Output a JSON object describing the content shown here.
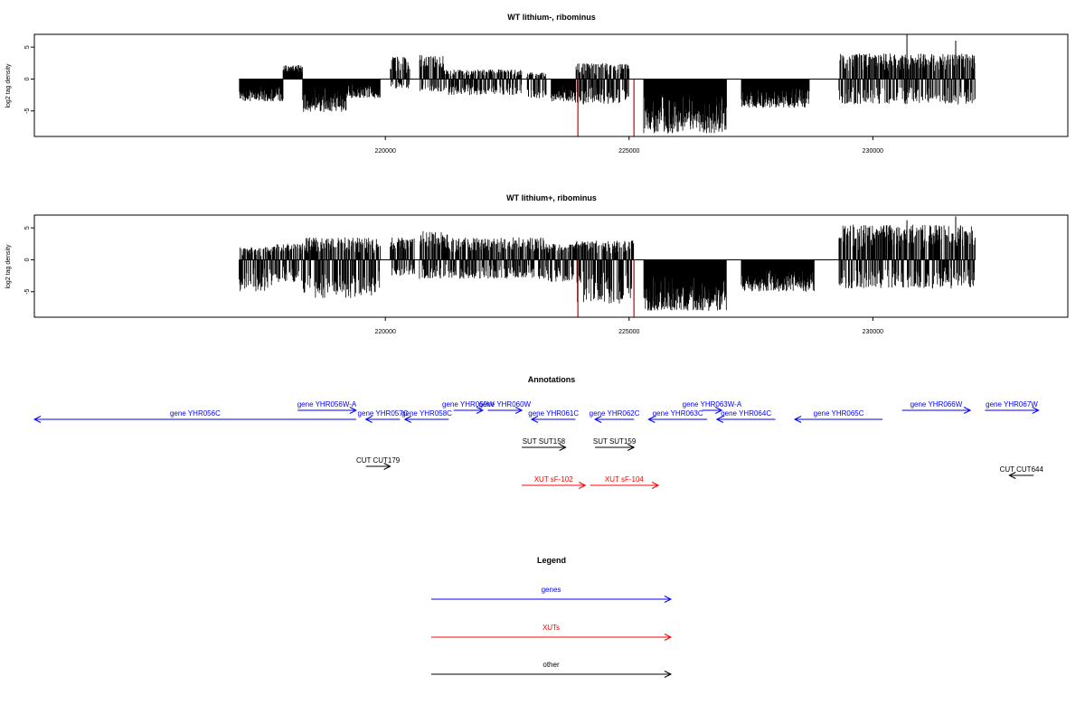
{
  "chart_data": [
    {
      "type": "bar",
      "title": "WT lithium-, ribominus",
      "ylabel": "log2 tag density",
      "xlabel": "",
      "xlim": [
        212800,
        234000
      ],
      "ylim": [
        -9,
        7
      ],
      "x_ticks": [
        220000,
        225000,
        230000
      ],
      "y_ticks": [
        -5,
        0,
        5
      ],
      "density_profile": [
        {
          "start": 217000,
          "end": 217900,
          "min": -3.5,
          "max": 0
        },
        {
          "start": 217900,
          "end": 218300,
          "min": 0,
          "max": 2.2
        },
        {
          "start": 218300,
          "end": 219200,
          "min": -5.2,
          "max": 0
        },
        {
          "start": 219200,
          "end": 219900,
          "min": -3.0,
          "max": 0
        },
        {
          "start": 220100,
          "end": 220500,
          "min": -1.5,
          "max": 3.5
        },
        {
          "start": 220700,
          "end": 221200,
          "min": -2.0,
          "max": 3.8
        },
        {
          "start": 221200,
          "end": 222800,
          "min": -2.5,
          "max": 1.5
        },
        {
          "start": 222900,
          "end": 223300,
          "min": -3.0,
          "max": 1.0
        },
        {
          "start": 223400,
          "end": 223900,
          "min": -3.5,
          "max": 0
        },
        {
          "start": 223900,
          "end": 225000,
          "min": -4.0,
          "max": 2.5
        },
        {
          "start": 225300,
          "end": 227000,
          "min": -8.5,
          "max": 0
        },
        {
          "start": 227300,
          "end": 228700,
          "min": -4.5,
          "max": 0
        },
        {
          "start": 229300,
          "end": 232100,
          "min": -4.0,
          "max": 4.0
        }
      ],
      "highlight_x": [
        223950,
        225100
      ],
      "highlight_min": -9.0,
      "highlight_color": "#cc0000",
      "peak_marks": [
        {
          "x": 230700,
          "y": 7
        },
        {
          "x": 231700,
          "y": 6
        }
      ]
    },
    {
      "type": "bar",
      "title": "WT lithium+, ribominus",
      "ylabel": "log2 tag density",
      "xlabel": "",
      "xlim": [
        212800,
        234000
      ],
      "ylim": [
        -9,
        7
      ],
      "x_ticks": [
        220000,
        225000,
        230000
      ],
      "y_ticks": [
        -5,
        0,
        5
      ],
      "density_profile": [
        {
          "start": 217000,
          "end": 217700,
          "min": -5.0,
          "max": 2.0
        },
        {
          "start": 217700,
          "end": 218300,
          "min": -3.5,
          "max": 2.5
        },
        {
          "start": 218300,
          "end": 219900,
          "min": -6.0,
          "max": 3.5
        },
        {
          "start": 220100,
          "end": 220600,
          "min": -2.5,
          "max": 3.5
        },
        {
          "start": 220700,
          "end": 221300,
          "min": -3.0,
          "max": 4.5
        },
        {
          "start": 221300,
          "end": 223300,
          "min": -3.0,
          "max": 3.5
        },
        {
          "start": 223300,
          "end": 223900,
          "min": -3.5,
          "max": 2.5
        },
        {
          "start": 223900,
          "end": 225100,
          "min": -7.0,
          "max": 3.0
        },
        {
          "start": 225300,
          "end": 227000,
          "min": -8.0,
          "max": 0
        },
        {
          "start": 227300,
          "end": 228800,
          "min": -5.0,
          "max": 0
        },
        {
          "start": 229300,
          "end": 232100,
          "min": -4.5,
          "max": 5.5
        }
      ],
      "highlight_x": [
        223950,
        225100
      ],
      "highlight_min": -9.0,
      "highlight_color": "#cc0000",
      "peak_marks": [
        {
          "x": 230700,
          "y": 6.2
        },
        {
          "x": 231700,
          "y": 6.8
        }
      ]
    }
  ],
  "annotations": {
    "title": "Annotations",
    "xlim": [
      212800,
      234000
    ],
    "colors": {
      "gene": "#0000ff",
      "xut": "#ff0000",
      "other": "#000000"
    },
    "features": [
      {
        "label": "gene YHR056C",
        "kind": "gene",
        "start": 212800,
        "end": 219400,
        "strand": "-",
        "row": 1
      },
      {
        "label": "gene YHR056W-A",
        "kind": "gene",
        "start": 218200,
        "end": 219400,
        "strand": "+",
        "row": 0
      },
      {
        "label": "gene YHR057C",
        "kind": "gene",
        "start": 219600,
        "end": 220300,
        "strand": "-",
        "row": 1
      },
      {
        "label": "gene YHR058C",
        "kind": "gene",
        "start": 220400,
        "end": 221300,
        "strand": "-",
        "row": 1
      },
      {
        "label": "gene YHR059W",
        "kind": "gene",
        "start": 221400,
        "end": 222000,
        "strand": "+",
        "row": 0
      },
      {
        "label": "gene YHR060W",
        "kind": "gene",
        "start": 222100,
        "end": 222800,
        "strand": "+",
        "row": 0
      },
      {
        "label": "gene YHR061C",
        "kind": "gene",
        "start": 223000,
        "end": 223900,
        "strand": "-",
        "row": 1
      },
      {
        "label": "gene YHR062C",
        "kind": "gene",
        "start": 224300,
        "end": 225100,
        "strand": "-",
        "row": 1
      },
      {
        "label": "gene YHR063C",
        "kind": "gene",
        "start": 225400,
        "end": 226600,
        "strand": "-",
        "row": 1
      },
      {
        "label": "gene YHR063W-A",
        "kind": "gene",
        "start": 226500,
        "end": 226900,
        "strand": "+",
        "row": 0
      },
      {
        "label": "gene YHR064C",
        "kind": "gene",
        "start": 226800,
        "end": 228000,
        "strand": "-",
        "row": 1
      },
      {
        "label": "gene YHR065C",
        "kind": "gene",
        "start": 228400,
        "end": 230200,
        "strand": "-",
        "row": 1
      },
      {
        "label": "gene YHR066W",
        "kind": "gene",
        "start": 230600,
        "end": 232000,
        "strand": "+",
        "row": 0
      },
      {
        "label": "gene YHR067W",
        "kind": "gene",
        "start": 232300,
        "end": 233400,
        "strand": "+",
        "row": 0
      },
      {
        "label": "SUT SUT158",
        "kind": "other",
        "start": 222800,
        "end": 223700,
        "strand": "+",
        "row": 2
      },
      {
        "label": "SUT SUT159",
        "kind": "other",
        "start": 224300,
        "end": 225100,
        "strand": "+",
        "row": 2
      },
      {
        "label": "CUT CUT179",
        "kind": "other",
        "start": 219600,
        "end": 220100,
        "strand": "+",
        "row": 3
      },
      {
        "label": "CUT CUT644",
        "kind": "other",
        "start": 232800,
        "end": 233300,
        "strand": "-",
        "row": 4
      },
      {
        "label": "XUT sF-102",
        "kind": "xut",
        "start": 222800,
        "end": 224100,
        "strand": "+",
        "row": 5
      },
      {
        "label": "XUT sF-104",
        "kind": "xut",
        "start": 224200,
        "end": 225600,
        "strand": "+",
        "row": 5
      }
    ]
  },
  "legend": {
    "title": "Legend",
    "items": [
      {
        "label": "genes",
        "color": "#0000ff"
      },
      {
        "label": "XUTs",
        "color": "#ff0000"
      },
      {
        "label": "other",
        "color": "#000000"
      }
    ]
  }
}
